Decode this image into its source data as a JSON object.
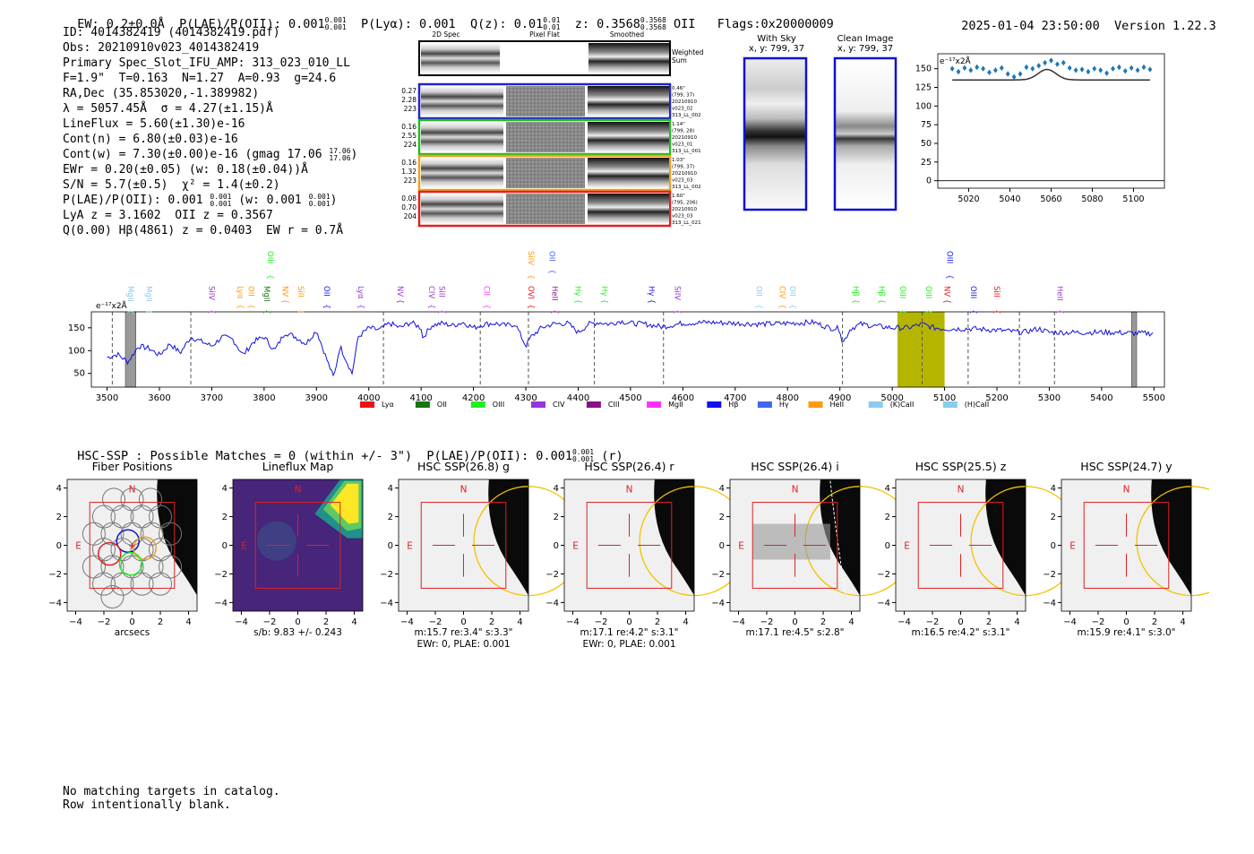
{
  "header": {
    "ew": "EW: 0.2±0.0Å",
    "p_lae_oii": "P(LAE)/P(OII): 0.001",
    "p_lae_oii_sup": "0.001",
    "p_lae_oii_sub": "0.001",
    "p_lya": "P(Lyα): 0.001",
    "qz": "Q(z): 0.01",
    "qz_sup": "0.01",
    "qz_sub": "0.01",
    "z": "z: 0.3568",
    "z_sup": "0.3568",
    "z_sub": "0.3568",
    "z_line": "OII",
    "flags": "Flags:0x20000009",
    "timestamp": "2025-01-04 23:50:00",
    "version": "Version 1.22.3"
  },
  "info": {
    "id": "ID: 4014382419 (4014382419.pdf)",
    "obs": "Obs: 20210910v023_4014382419",
    "primary": "Primary Spec_Slot_IFU_AMP: 313_023_010_LL",
    "fparams": "F=1.9\"  T=0.163  N=1.27  A=0.93  g=24.6",
    "radec": "RA,Dec (35.853020,-1.389982)",
    "lambda": "λ = 5057.45Å  σ = 4.27(±1.15)Å",
    "lineflux": "LineFlux = 5.60(±1.30)e-16",
    "cont_n": "Cont(n) = 6.80(±0.03)e-16",
    "cont_w": "Cont(w) = 7.30(±0.00)e-16 (gmag 17.06",
    "cont_w_sup": "17.06",
    "cont_w_sub": "17.06",
    "ewr": "EWr = 0.20(±0.05) (w: 0.18(±0.04))Å",
    "sn": "S/N = 5.7(±0.5)  χ² = 1.4(±0.2)",
    "plae": "P(LAE)/P(OII): 0.001",
    "plae_sup": "0.001",
    "plae_sub": "0.001",
    "plae_w": "(w: 0.001",
    "plae_w_sup": "0.001",
    "plae_w_sub": "0.001",
    "lya": "LyA z = 3.1602  OII z = 0.3567",
    "q": "Q(0.00) Hβ(4861) z = 0.0403  EW r = 0.7Å"
  },
  "cutouts": {
    "col_2d": "2D Spec",
    "col_flat": "Pixel Flat",
    "col_smooth": "Smoothed",
    "weighted": "Weighted\nSum",
    "rows": [
      {
        "left": [
          "0.27",
          "2.28",
          "223"
        ],
        "right": [
          "0.46\"",
          "(799, 37)",
          "20210910",
          "v023_02",
          "313_LL_002"
        ],
        "color": "#2222cc"
      },
      {
        "left": [
          "0.16",
          "2.55",
          "224"
        ],
        "right": [
          "1.14\"",
          "(799, 28)",
          "20210910",
          "v023_01",
          "313_LL_001"
        ],
        "color": "#22bb22"
      },
      {
        "left": [
          "0.16",
          "1.32",
          "223"
        ],
        "right": [
          "1.03\"",
          "(799, 37)",
          "20210910",
          "v023_03",
          "313_LL_002"
        ],
        "color": "#f0a020"
      },
      {
        "left": [
          "0.08",
          "0.70",
          "204"
        ],
        "right": [
          "1.60\"",
          "(795, 206)",
          "20210910",
          "v023_03",
          "313_LL_021"
        ],
        "color": "#dd2222"
      }
    ]
  },
  "sky": {
    "with_sky": "With Sky",
    "with_sky_xy": "x, y: 799, 37",
    "clean": "Clean Image",
    "clean_xy": "x, y: 799, 37"
  },
  "zoom_chart": {
    "unit": "e⁻¹⁷x2Å",
    "xlim": [
      5005,
      5115
    ],
    "ylim": [
      -10,
      170
    ],
    "xticks": [
      5020,
      5040,
      5060,
      5080,
      5100
    ],
    "yticks": [
      0,
      25,
      50,
      75,
      100,
      125,
      150
    ],
    "points": [
      [
        5012,
        150
      ],
      [
        5015,
        146
      ],
      [
        5018,
        151
      ],
      [
        5021,
        148
      ],
      [
        5024,
        152
      ],
      [
        5027,
        150
      ],
      [
        5030,
        145
      ],
      [
        5033,
        148
      ],
      [
        5036,
        151
      ],
      [
        5039,
        143
      ],
      [
        5042,
        139
      ],
      [
        5045,
        143
      ],
      [
        5048,
        152
      ],
      [
        5051,
        150
      ],
      [
        5054,
        154
      ],
      [
        5057,
        158
      ],
      [
        5060,
        161
      ],
      [
        5063,
        156
      ],
      [
        5066,
        158
      ],
      [
        5069,
        151
      ],
      [
        5072,
        148
      ],
      [
        5075,
        149
      ],
      [
        5078,
        146
      ],
      [
        5081,
        150
      ],
      [
        5084,
        148
      ],
      [
        5087,
        144
      ],
      [
        5090,
        150
      ],
      [
        5093,
        152
      ],
      [
        5096,
        147
      ],
      [
        5099,
        151
      ],
      [
        5102,
        148
      ],
      [
        5105,
        152
      ],
      [
        5108,
        149
      ]
    ],
    "fit_base": 135,
    "fit_peak": 14,
    "fit_center": 5058,
    "fit_sigma": 4.3
  },
  "chart_data": {
    "type": "line",
    "title": "",
    "ylabel": "e⁻¹⁷x2Å",
    "xlim": [
      3470,
      5520
    ],
    "ylim": [
      20,
      185
    ],
    "xticks": [
      3500,
      3600,
      3700,
      3800,
      3900,
      4000,
      4100,
      4200,
      4300,
      4400,
      4500,
      4600,
      4700,
      4800,
      4900,
      5000,
      5100,
      5200,
      5300,
      5400,
      5500
    ],
    "yticks": [
      50,
      100,
      150
    ],
    "highlight_band": [
      5010,
      5100
    ],
    "highlight_color": "#b5b500",
    "dashed_lines": [
      3510,
      3660,
      4028,
      4213,
      4305,
      4431,
      4563,
      4905,
      5057,
      5145,
      5243,
      5310
    ],
    "gray_bands": [
      [
        3535,
        3555
      ],
      [
        5457,
        5467
      ]
    ],
    "spectrum_anchors": [
      [
        3500,
        85
      ],
      [
        3520,
        92
      ],
      [
        3540,
        75
      ],
      [
        3560,
        110
      ],
      [
        3580,
        105
      ],
      [
        3600,
        90
      ],
      [
        3620,
        115
      ],
      [
        3640,
        95
      ],
      [
        3660,
        130
      ],
      [
        3680,
        120
      ],
      [
        3700,
        110
      ],
      [
        3720,
        130
      ],
      [
        3740,
        125
      ],
      [
        3760,
        90
      ],
      [
        3780,
        120
      ],
      [
        3800,
        130
      ],
      [
        3820,
        100
      ],
      [
        3840,
        140
      ],
      [
        3860,
        130
      ],
      [
        3880,
        115
      ],
      [
        3900,
        145
      ],
      [
        3920,
        80
      ],
      [
        3933,
        40
      ],
      [
        3945,
        110
      ],
      [
        3968,
        50
      ],
      [
        3980,
        130
      ],
      [
        4000,
        150
      ],
      [
        4020,
        145
      ],
      [
        4040,
        160
      ],
      [
        4060,
        150
      ],
      [
        4080,
        162
      ],
      [
        4100,
        150
      ],
      [
        4101,
        125
      ],
      [
        4120,
        155
      ],
      [
        4140,
        160
      ],
      [
        4160,
        155
      ],
      [
        4180,
        162
      ],
      [
        4200,
        150
      ],
      [
        4220,
        158
      ],
      [
        4240,
        160
      ],
      [
        4260,
        155
      ],
      [
        4280,
        158
      ],
      [
        4300,
        110
      ],
      [
        4310,
        130
      ],
      [
        4330,
        150
      ],
      [
        4350,
        158
      ],
      [
        4380,
        160
      ],
      [
        4400,
        140
      ],
      [
        4420,
        158
      ],
      [
        4440,
        162
      ],
      [
        4460,
        158
      ],
      [
        4480,
        165
      ],
      [
        4500,
        160
      ],
      [
        4530,
        158
      ],
      [
        4560,
        152
      ],
      [
        4600,
        160
      ],
      [
        4650,
        162
      ],
      [
        4700,
        160
      ],
      [
        4750,
        158
      ],
      [
        4800,
        160
      ],
      [
        4850,
        162
      ],
      [
        4880,
        150
      ],
      [
        4900,
        148
      ],
      [
        4905,
        115
      ],
      [
        4920,
        148
      ],
      [
        4940,
        158
      ],
      [
        4960,
        155
      ],
      [
        5000,
        150
      ],
      [
        5030,
        150
      ],
      [
        5057,
        158
      ],
      [
        5080,
        150
      ],
      [
        5100,
        148
      ],
      [
        5150,
        148
      ],
      [
        5200,
        145
      ],
      [
        5250,
        140
      ],
      [
        5280,
        148
      ],
      [
        5300,
        140
      ],
      [
        5340,
        140
      ],
      [
        5380,
        140
      ],
      [
        5420,
        140
      ],
      [
        5460,
        138
      ],
      [
        5500,
        138
      ]
    ],
    "legend": [
      {
        "label": "Lyα",
        "color": "#ee1111"
      },
      {
        "label": "OII",
        "color": "#117711"
      },
      {
        "label": "OIII",
        "color": "#22ee22"
      },
      {
        "label": "CIV",
        "color": "#9933dd"
      },
      {
        "label": "CIII",
        "color": "#881188"
      },
      {
        "label": "MgII",
        "color": "#ff33ff"
      },
      {
        "label": "Hβ",
        "color": "#1111ee"
      },
      {
        "label": "Hγ",
        "color": "#4466ee"
      },
      {
        "label": "HeII",
        "color": "#ff9911"
      },
      {
        "label": "(K)CaII",
        "color": "#88ccee"
      },
      {
        "label": "(H)CaII",
        "color": "#88ccee"
      }
    ],
    "line_labels": [
      {
        "x": 3535,
        "label": "MgII",
        "color": "#88ccee",
        "row": 1
      },
      {
        "x": 3570,
        "label": "MgII",
        "color": "#88ccee",
        "row": 1
      },
      {
        "x": 3690,
        "label": "SiIV",
        "color": "#9933dd",
        "row": 1
      },
      {
        "x": 3745,
        "label": "Lyα",
        "color": "#ff9911",
        "row": 1
      },
      {
        "x": 3765,
        "label": "OII",
        "color": "#ff9911",
        "row": 1
      },
      {
        "x": 3795,
        "label": "MgII",
        "color": "#117711",
        "row": 1
      },
      {
        "x": 3802,
        "label": "OIII",
        "color": "#22ee22",
        "row": 0
      },
      {
        "x": 3830,
        "label": "NV",
        "color": "#ff9911",
        "row": 1
      },
      {
        "x": 3860,
        "label": "SiII",
        "color": "#ff9911",
        "row": 1
      },
      {
        "x": 3910,
        "label": "OII",
        "color": "#1111ee",
        "row": 1
      },
      {
        "x": 3975,
        "label": "Lyα",
        "color": "#9933dd",
        "row": 1
      },
      {
        "x": 4050,
        "label": "NV",
        "color": "#9933dd",
        "row": 1
      },
      {
        "x": 4110,
        "label": "CIV",
        "color": "#9933dd",
        "row": 1
      },
      {
        "x": 4130,
        "label": "SiII",
        "color": "#9933dd",
        "row": 1
      },
      {
        "x": 4215,
        "label": "CII",
        "color": "#ff33ff",
        "row": 1
      },
      {
        "x": 4300,
        "label": "SiIV",
        "color": "#ff9911",
        "row": 0
      },
      {
        "x": 4300,
        "label": "OVI",
        "color": "#ee1111",
        "row": 1
      },
      {
        "x": 4340,
        "label": "OII",
        "color": "#4466ee",
        "row": 0
      },
      {
        "x": 4345,
        "label": "HeII",
        "color": "#881188",
        "row": 1
      },
      {
        "x": 4390,
        "label": "Hγ",
        "color": "#22ee22",
        "row": 1
      },
      {
        "x": 4440,
        "label": "Hγ",
        "color": "#22ee22",
        "row": 1
      },
      {
        "x": 4530,
        "label": "Hγ",
        "color": "#1111ee",
        "row": 1
      },
      {
        "x": 4580,
        "label": "SiIV",
        "color": "#9933dd",
        "row": 1
      },
      {
        "x": 4735,
        "label": "OII",
        "color": "#88ccee",
        "row": 1
      },
      {
        "x": 4780,
        "label": "CIV",
        "color": "#ff9911",
        "row": 1
      },
      {
        "x": 4800,
        "label": "OII",
        "color": "#88ccee",
        "row": 1
      },
      {
        "x": 4920,
        "label": "Hβ",
        "color": "#22ee22",
        "row": 1
      },
      {
        "x": 4970,
        "label": "Hβ",
        "color": "#22ee22",
        "row": 1
      },
      {
        "x": 5010,
        "label": "OIII",
        "color": "#22ee22",
        "row": 1
      },
      {
        "x": 5060,
        "label": "OIII",
        "color": "#22ee22",
        "row": 1
      },
      {
        "x": 5100,
        "label": "OIII",
        "color": "#1111ee",
        "row": 0
      },
      {
        "x": 5095,
        "label": "NV",
        "color": "#ee1111",
        "row": 1
      },
      {
        "x": 5145,
        "label": "OIII",
        "color": "#1111ee",
        "row": 1
      },
      {
        "x": 5190,
        "label": "SiII",
        "color": "#ee1111",
        "row": 1
      },
      {
        "x": 5310,
        "label": "HeII",
        "color": "#9933dd",
        "row": 1
      }
    ]
  },
  "hsc": {
    "summary": "HSC-SSP : Possible Matches = 0 (within +/- 3\")  P(LAE)/P(OII): 0.001",
    "summary_sup": "0.001",
    "summary_sub": "0.001",
    "summary_band": "(r)",
    "ticks": [
      -4,
      -2,
      0,
      2,
      4
    ],
    "panels": [
      {
        "title": "Fiber Positions",
        "caption1": "arcsecs",
        "caption2": ""
      },
      {
        "title": "Lineflux Map",
        "caption1": "s/b: 9.83 +/- 0.243",
        "caption2": ""
      },
      {
        "title": "HSC SSP(26.8) g",
        "caption1": "m:15.7  re:3.4\"  s:3.3\"",
        "caption2": "EWr: 0, PLAE: 0.001"
      },
      {
        "title": "HSC SSP(26.4) r",
        "caption1": "m:17.1  re:4.2\"  s:3.1\"",
        "caption2": "EWr: 0, PLAE: 0.001"
      },
      {
        "title": "HSC SSP(26.4) i",
        "caption1": "m:17.1  re:4.5\"  s:2.8\"",
        "caption2": ""
      },
      {
        "title": "HSC SSP(25.5) z",
        "caption1": "m:16.5  re:4.2\"  s:3.1\"",
        "caption2": ""
      },
      {
        "title": "HSC SSP(24.7) y",
        "caption1": "m:15.9  re:4.1\"  s:3.0\"",
        "caption2": ""
      }
    ],
    "north": "N",
    "east": "E"
  },
  "footer": {
    "line1": "No matching targets in catalog.",
    "line2": "Row intentionally blank."
  }
}
